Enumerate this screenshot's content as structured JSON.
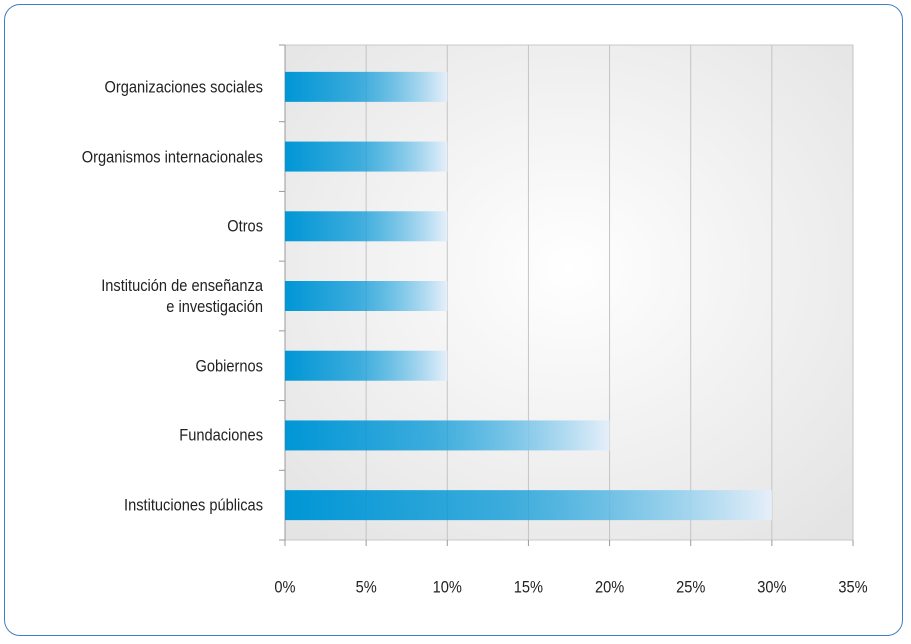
{
  "chart_data": {
    "type": "bar",
    "orientation": "horizontal",
    "categories": [
      "Organizaciones sociales",
      "Organismos internacionales",
      "Otros",
      "Institución de enseñanza\ne investigación",
      "Gobiernos",
      "Fundaciones",
      "Instituciones públicas"
    ],
    "values": [
      10,
      10,
      10,
      10,
      10,
      20,
      30
    ],
    "color": "#0096d6",
    "xlim": [
      0,
      35
    ],
    "xticks": [
      {
        "value": 0,
        "label": "0%"
      },
      {
        "value": 5,
        "label": "5%"
      },
      {
        "value": 10,
        "label": "10%"
      },
      {
        "value": 15,
        "label": "15%"
      },
      {
        "value": 20,
        "label": "20%"
      },
      {
        "value": 25,
        "label": "25%"
      },
      {
        "value": 30,
        "label": "30%"
      },
      {
        "value": 35,
        "label": "35%"
      }
    ],
    "grid": true
  }
}
